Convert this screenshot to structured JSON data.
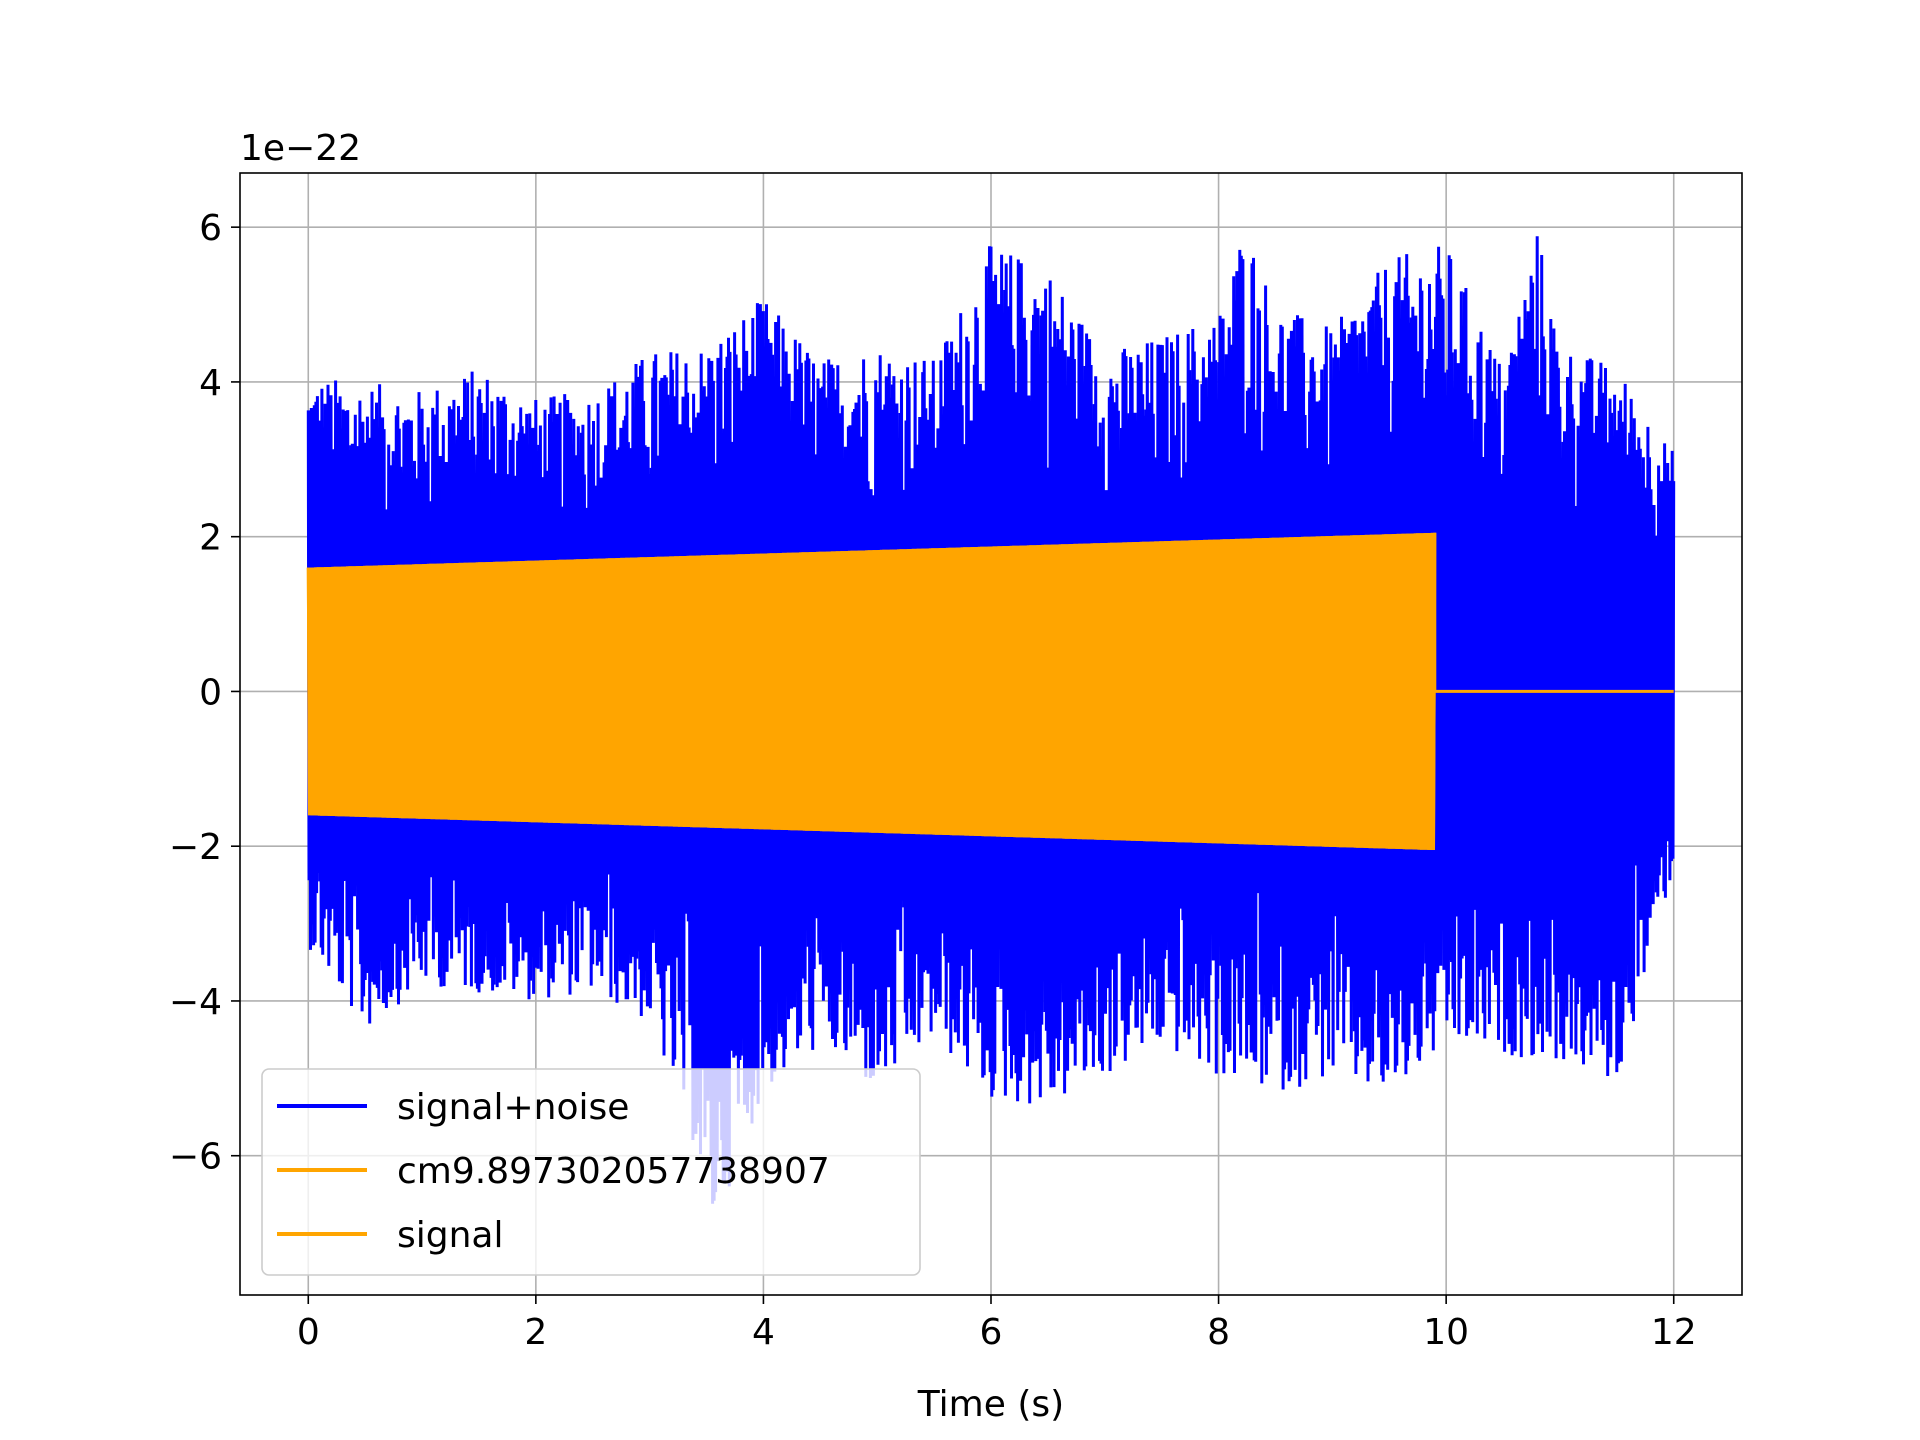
{
  "chart_data": {
    "type": "line",
    "title": "",
    "xlabel": "Time (s)",
    "ylabel": "",
    "y_scale_label": "1e−22",
    "xlim": [
      -0.6,
      12.6
    ],
    "ylim": [
      -7.8,
      6.7
    ],
    "xticks": [
      0,
      2,
      4,
      6,
      8,
      10,
      12
    ],
    "xtick_labels": [
      "0",
      "2",
      "4",
      "6",
      "8",
      "10",
      "12"
    ],
    "yticks": [
      -6,
      -4,
      -2,
      0,
      2,
      4,
      6
    ],
    "ytick_labels": [
      "−6",
      "−4",
      "−2",
      "0",
      "2",
      "4",
      "6"
    ],
    "grid": true,
    "legend_position": "lower-left",
    "series": [
      {
        "name": "signal+noise",
        "color": "#0000ff",
        "x_range": [
          0,
          12
        ],
        "envelope_upper": [
          [
            0,
            4.1
          ],
          [
            0.5,
            4.0
          ],
          [
            1.0,
            3.9
          ],
          [
            1.5,
            4.2
          ],
          [
            2.0,
            3.8
          ],
          [
            2.5,
            3.9
          ],
          [
            3.0,
            4.4
          ],
          [
            3.5,
            4.5
          ],
          [
            4.0,
            5.1
          ],
          [
            4.5,
            4.3
          ],
          [
            5.0,
            4.5
          ],
          [
            5.5,
            4.3
          ],
          [
            6.0,
            5.8
          ],
          [
            6.5,
            5.5
          ],
          [
            7.0,
            4.4
          ],
          [
            7.5,
            4.6
          ],
          [
            8.0,
            4.9
          ],
          [
            8.23,
            6.1
          ],
          [
            8.5,
            5.0
          ],
          [
            9.0,
            4.7
          ],
          [
            9.5,
            5.6
          ],
          [
            10.0,
            5.8
          ],
          [
            10.5,
            4.2
          ],
          [
            10.8,
            6.0
          ],
          [
            11.0,
            4.5
          ],
          [
            11.5,
            4.2
          ],
          [
            12.0,
            3.1
          ]
        ],
        "envelope_lower": [
          [
            0,
            -3.3
          ],
          [
            0.5,
            -4.4
          ],
          [
            1.0,
            -3.8
          ],
          [
            1.5,
            -3.9
          ],
          [
            2.0,
            -4.0
          ],
          [
            2.5,
            -3.9
          ],
          [
            3.0,
            -4.3
          ],
          [
            3.42,
            -6.0
          ],
          [
            3.5,
            -7.2
          ],
          [
            4.0,
            -5.2
          ],
          [
            4.5,
            -4.6
          ],
          [
            5.0,
            -5.2
          ],
          [
            5.5,
            -4.5
          ],
          [
            6.0,
            -5.3
          ],
          [
            6.5,
            -5.4
          ],
          [
            7.0,
            -5.0
          ],
          [
            7.5,
            -4.6
          ],
          [
            8.0,
            -5.0
          ],
          [
            8.5,
            -5.2
          ],
          [
            9.0,
            -5.0
          ],
          [
            9.5,
            -5.3
          ],
          [
            10.0,
            -4.6
          ],
          [
            10.5,
            -4.7
          ],
          [
            11.0,
            -4.8
          ],
          [
            11.5,
            -5.1
          ],
          [
            12.0,
            -2.3
          ]
        ]
      },
      {
        "name": "cm9.897302057738907",
        "color": "#ffa500",
        "x_range": [
          0,
          9.9
        ],
        "amplitude_start": 1.6,
        "amplitude_end": 2.05
      },
      {
        "name": "signal",
        "color": "#ffa500",
        "x_range": [
          0,
          12
        ],
        "amplitude_start": 1.6,
        "amplitude_end": 2.05,
        "ends_at": 9.9,
        "after_value": 0
      }
    ]
  }
}
